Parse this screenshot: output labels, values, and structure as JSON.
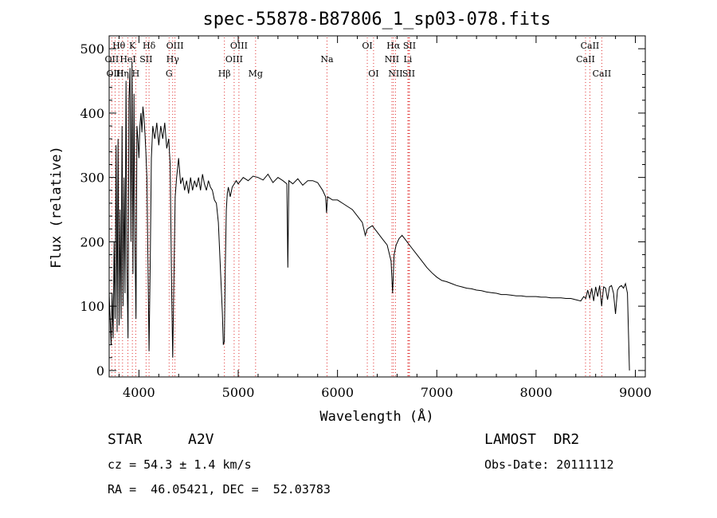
{
  "chart_data": {
    "type": "line",
    "title": "spec-55878-B87806_1_sp03-078.fits",
    "xlabel": "Wavelength (Å)",
    "ylabel": "Flux (relative)",
    "xlim": [
      3700,
      9100
    ],
    "ylim": [
      -10,
      520
    ],
    "xticks": [
      4000,
      5000,
      6000,
      7000,
      8000,
      9000
    ],
    "yticks": [
      0,
      100,
      200,
      300,
      400,
      500
    ],
    "grid": false,
    "colors": {
      "spectrum": "#000000",
      "line_markers": "#e03030"
    },
    "series": [
      {
        "points": [
          [
            3700,
            120
          ],
          [
            3720,
            40
          ],
          [
            3730,
            120
          ],
          [
            3740,
            50
          ],
          [
            3750,
            200
          ],
          [
            3760,
            80
          ],
          [
            3770,
            350
          ],
          [
            3780,
            60
          ],
          [
            3790,
            360
          ],
          [
            3800,
            70
          ],
          [
            3810,
            250
          ],
          [
            3820,
            80
          ],
          [
            3830,
            380
          ],
          [
            3840,
            100
          ],
          [
            3850,
            300
          ],
          [
            3860,
            120
          ],
          [
            3870,
            450
          ],
          [
            3880,
            160
          ],
          [
            3890,
            50
          ],
          [
            3900,
            420
          ],
          [
            3910,
            470
          ],
          [
            3920,
            200
          ],
          [
            3930,
            480
          ],
          [
            3940,
            150
          ],
          [
            3950,
            430
          ],
          [
            3960,
            200
          ],
          [
            3970,
            80
          ],
          [
            3980,
            380
          ],
          [
            3990,
            360
          ],
          [
            4000,
            330
          ],
          [
            4010,
            380
          ],
          [
            4020,
            400
          ],
          [
            4030,
            370
          ],
          [
            4040,
            410
          ],
          [
            4050,
            395
          ],
          [
            4060,
            370
          ],
          [
            4070,
            340
          ],
          [
            4080,
            300
          ],
          [
            4090,
            180
          ],
          [
            4102,
            30
          ],
          [
            4115,
            180
          ],
          [
            4125,
            330
          ],
          [
            4140,
            380
          ],
          [
            4160,
            360
          ],
          [
            4180,
            385
          ],
          [
            4200,
            350
          ],
          [
            4220,
            380
          ],
          [
            4240,
            360
          ],
          [
            4260,
            385
          ],
          [
            4280,
            345
          ],
          [
            4300,
            360
          ],
          [
            4315,
            320
          ],
          [
            4330,
            120
          ],
          [
            4340,
            20
          ],
          [
            4350,
            120
          ],
          [
            4365,
            270
          ],
          [
            4380,
            300
          ],
          [
            4400,
            330
          ],
          [
            4420,
            290
          ],
          [
            4440,
            300
          ],
          [
            4460,
            280
          ],
          [
            4480,
            295
          ],
          [
            4500,
            275
          ],
          [
            4520,
            300
          ],
          [
            4540,
            280
          ],
          [
            4560,
            295
          ],
          [
            4580,
            285
          ],
          [
            4600,
            300
          ],
          [
            4620,
            280
          ],
          [
            4640,
            305
          ],
          [
            4660,
            290
          ],
          [
            4680,
            280
          ],
          [
            4700,
            295
          ],
          [
            4720,
            285
          ],
          [
            4740,
            280
          ],
          [
            4760,
            265
          ],
          [
            4780,
            260
          ],
          [
            4800,
            230
          ],
          [
            4820,
            160
          ],
          [
            4840,
            90
          ],
          [
            4850,
            40
          ],
          [
            4860,
            45
          ],
          [
            4870,
            160
          ],
          [
            4880,
            250
          ],
          [
            4890,
            275
          ],
          [
            4900,
            285
          ],
          [
            4920,
            270
          ],
          [
            4940,
            285
          ],
          [
            4960,
            290
          ],
          [
            4980,
            295
          ],
          [
            5000,
            290
          ],
          [
            5050,
            300
          ],
          [
            5100,
            295
          ],
          [
            5150,
            302
          ],
          [
            5200,
            300
          ],
          [
            5250,
            296
          ],
          [
            5300,
            305
          ],
          [
            5350,
            292
          ],
          [
            5400,
            300
          ],
          [
            5450,
            295
          ],
          [
            5490,
            290
          ],
          [
            5500,
            160
          ],
          [
            5510,
            295
          ],
          [
            5550,
            290
          ],
          [
            5600,
            298
          ],
          [
            5650,
            288
          ],
          [
            5700,
            295
          ],
          [
            5750,
            295
          ],
          [
            5800,
            292
          ],
          [
            5850,
            280
          ],
          [
            5880,
            270
          ],
          [
            5890,
            245
          ],
          [
            5900,
            270
          ],
          [
            5950,
            265
          ],
          [
            6000,
            265
          ],
          [
            6050,
            260
          ],
          [
            6100,
            255
          ],
          [
            6150,
            250
          ],
          [
            6200,
            240
          ],
          [
            6250,
            230
          ],
          [
            6280,
            210
          ],
          [
            6300,
            220
          ],
          [
            6350,
            225
          ],
          [
            6400,
            215
          ],
          [
            6450,
            205
          ],
          [
            6500,
            195
          ],
          [
            6540,
            170
          ],
          [
            6555,
            120
          ],
          [
            6570,
            180
          ],
          [
            6590,
            195
          ],
          [
            6620,
            205
          ],
          [
            6650,
            210
          ],
          [
            6700,
            200
          ],
          [
            6750,
            190
          ],
          [
            6800,
            180
          ],
          [
            6850,
            170
          ],
          [
            6900,
            160
          ],
          [
            6950,
            152
          ],
          [
            7000,
            145
          ],
          [
            7050,
            140
          ],
          [
            7100,
            138
          ],
          [
            7150,
            135
          ],
          [
            7200,
            132
          ],
          [
            7250,
            130
          ],
          [
            7300,
            128
          ],
          [
            7350,
            127
          ],
          [
            7400,
            125
          ],
          [
            7450,
            124
          ],
          [
            7500,
            122
          ],
          [
            7550,
            121
          ],
          [
            7600,
            120
          ],
          [
            7650,
            118
          ],
          [
            7700,
            118
          ],
          [
            7750,
            117
          ],
          [
            7800,
            116
          ],
          [
            7850,
            116
          ],
          [
            7900,
            115
          ],
          [
            7950,
            115
          ],
          [
            8000,
            115
          ],
          [
            8050,
            114
          ],
          [
            8100,
            114
          ],
          [
            8150,
            113
          ],
          [
            8200,
            113
          ],
          [
            8250,
            113
          ],
          [
            8300,
            112
          ],
          [
            8350,
            112
          ],
          [
            8400,
            110
          ],
          [
            8450,
            108
          ],
          [
            8480,
            115
          ],
          [
            8500,
            112
          ],
          [
            8520,
            125
          ],
          [
            8540,
            112
          ],
          [
            8560,
            128
          ],
          [
            8580,
            108
          ],
          [
            8600,
            130
          ],
          [
            8620,
            115
          ],
          [
            8640,
            132
          ],
          [
            8660,
            100
          ],
          [
            8680,
            130
          ],
          [
            8700,
            128
          ],
          [
            8720,
            110
          ],
          [
            8740,
            130
          ],
          [
            8760,
            132
          ],
          [
            8780,
            120
          ],
          [
            8800,
            88
          ],
          [
            8820,
            125
          ],
          [
            8840,
            130
          ],
          [
            8860,
            132
          ],
          [
            8880,
            128
          ],
          [
            8900,
            135
          ],
          [
            8920,
            120
          ],
          [
            8940,
            0
          ]
        ]
      }
    ],
    "lines": [
      {
        "name": "Hθ",
        "wl": 3798,
        "row": 1
      },
      {
        "name": "OII",
        "wl": 3727,
        "row": 2
      },
      {
        "name": "OIII",
        "wl": 3760,
        "row": 3
      },
      {
        "name": "Hη",
        "wl": 3835,
        "row": 3
      },
      {
        "name": "HeI",
        "wl": 3889,
        "row": 2
      },
      {
        "name": "K",
        "wl": 3934,
        "row": 1
      },
      {
        "name": "H",
        "wl": 3968,
        "row": 3
      },
      {
        "name": "SII",
        "wl": 4072,
        "row": 2
      },
      {
        "name": "Hδ",
        "wl": 4102,
        "row": 1
      },
      {
        "name": "OIII",
        "wl": 4363,
        "row": 1
      },
      {
        "name": "Hγ",
        "wl": 4340,
        "row": 2
      },
      {
        "name": "G",
        "wl": 4304,
        "row": 3
      },
      {
        "name": "Hβ",
        "wl": 4861,
        "row": 3
      },
      {
        "name": "OIII",
        "wl": 5007,
        "row": 1
      },
      {
        "name": "OIII",
        "wl": 4959,
        "row": 2
      },
      {
        "name": "Mg",
        "wl": 5175,
        "row": 3
      },
      {
        "name": "Na",
        "wl": 5894,
        "row": 2
      },
      {
        "name": "OI",
        "wl": 6300,
        "row": 1
      },
      {
        "name": "OI",
        "wl": 6363,
        "row": 3
      },
      {
        "name": "Hα",
        "wl": 6563,
        "row": 1
      },
      {
        "name": "SII",
        "wl": 6725,
        "row": 1
      },
      {
        "name": "NII",
        "wl": 6548,
        "row": 2
      },
      {
        "name": "Li",
        "wl": 6708,
        "row": 2
      },
      {
        "name": "NII",
        "wl": 6584,
        "row": 3
      },
      {
        "name": "SII",
        "wl": 6717,
        "row": 3
      },
      {
        "name": "CaII",
        "wl": 8542,
        "row": 1
      },
      {
        "name": "CaII",
        "wl": 8498,
        "row": 2
      },
      {
        "name": "CaII",
        "wl": 8662,
        "row": 3
      }
    ]
  },
  "info": {
    "object_class": "STAR",
    "subclass": "A2V",
    "survey": "LAMOST  DR2",
    "cz": "cz = 54.3 ± 1.4 km/s",
    "obs_date": "Obs-Date: 20111112",
    "coords": "RA =  46.05421, DEC =  52.03783"
  }
}
